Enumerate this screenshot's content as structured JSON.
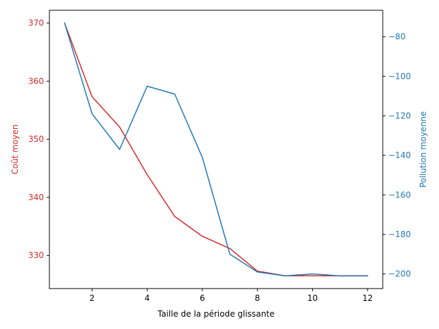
{
  "chart_data": {
    "type": "line",
    "title": "",
    "xlabel": "Taille de la période glissante",
    "xlim": [
      0.45,
      12.55
    ],
    "x_ticks": [
      2,
      4,
      6,
      8,
      10,
      12
    ],
    "x_tick_labels": [
      "2",
      "4",
      "6",
      "8",
      "10",
      "12"
    ],
    "x": [
      1,
      2,
      3,
      4,
      5,
      6,
      7,
      8,
      9,
      10,
      11,
      12
    ],
    "grid": false,
    "legend": "none",
    "series": [
      {
        "axis": "left",
        "color": "#d62728",
        "values": [
          370.0,
          357.3,
          352.1,
          343.9,
          336.7,
          333.3,
          331.2,
          327.3,
          326.5,
          326.5,
          326.5,
          326.5
        ]
      },
      {
        "axis": "right",
        "color": "#1f77b4",
        "values": [
          -73,
          -119,
          -137,
          -105,
          -109,
          -141,
          -190,
          -199,
          -201,
          -200,
          -201,
          -201
        ]
      }
    ],
    "y_left": {
      "label": "Coût moyen",
      "color": "#d62728",
      "lim": [
        324.3,
        372.2
      ],
      "ticks": [
        330,
        340,
        350,
        360,
        370
      ],
      "tick_labels": [
        "330",
        "340",
        "350",
        "360",
        "370"
      ]
    },
    "y_right": {
      "label": "Pollution moyenne",
      "color": "#1f77b4",
      "lim": [
        -207.4,
        -66.6
      ],
      "ticks": [
        -200,
        -180,
        -160,
        -140,
        -120,
        -100,
        -80
      ],
      "tick_labels": [
        "−200",
        "−180",
        "−160",
        "−140",
        "−120",
        "−100",
        "−80"
      ]
    }
  }
}
